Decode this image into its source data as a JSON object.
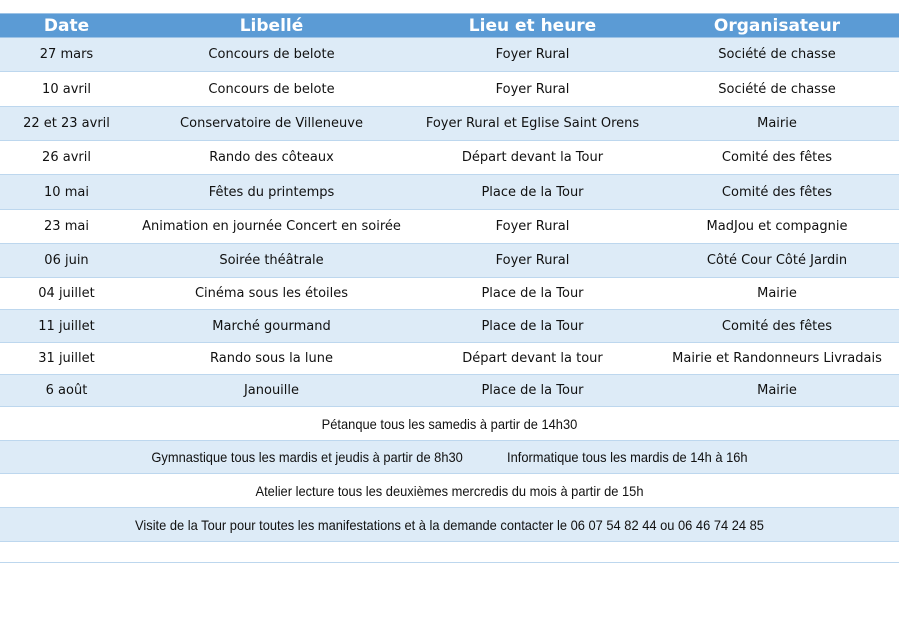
{
  "columns": [
    "Date",
    "Libellé",
    "Lieu et heure",
    "Organisateur"
  ],
  "rows": [
    [
      "27 mars",
      "Concours de belote",
      "Foyer Rural",
      "Société de chasse"
    ],
    [
      "10 avril",
      "Concours de belote",
      "Foyer Rural",
      "Société de chasse"
    ],
    [
      "22 et 23 avril",
      "Conservatoire de Villeneuve",
      "Foyer Rural et Eglise Saint Orens",
      "Mairie"
    ],
    [
      "26 avril",
      "Rando des côteaux",
      "Départ devant la Tour",
      "Comité des fêtes"
    ],
    [
      "10 mai",
      "Fêtes du printemps",
      "Place de la Tour",
      "Comité des fêtes"
    ],
    [
      "23 mai",
      "Animation en journée Concert en soirée",
      "Foyer Rural",
      "MadJou et compagnie"
    ],
    [
      "06 juin",
      "Soirée théâtrale",
      "Foyer Rural",
      "Côté Cour Côté Jardin"
    ],
    [
      "04 juillet",
      "Cinéma sous les étoiles",
      "Place de la Tour",
      "Mairie"
    ],
    [
      "11 juillet",
      "Marché gourmand",
      "Place de la Tour",
      "Comité des fêtes"
    ],
    [
      "31 juillet",
      "Rando sous la lune",
      "Départ devant la tour",
      "Mairie et Randonneurs Livradais"
    ],
    [
      "6 août",
      "Janouille",
      "Place de la Tour",
      "Mairie"
    ]
  ],
  "notes": {
    "petanque": "Pétanque tous les samedis à partir de 14h30",
    "gym": "Gymnastique tous les mardis et jeudis à partir de 8h30",
    "info": "Informatique tous les mardis de 14h à 16h",
    "atelier": "Atelier lecture tous les deuxièmes mercredis du mois à partir de 15h",
    "visite": "Visite de la Tour pour toutes les manifestations et à la demande contacter le 06 07 54 82 44 ou 06 46 74 24 85"
  },
  "colors": {
    "header": "#5b9bd5",
    "shade": "#ddebf7",
    "border": "#bdd7ee"
  }
}
